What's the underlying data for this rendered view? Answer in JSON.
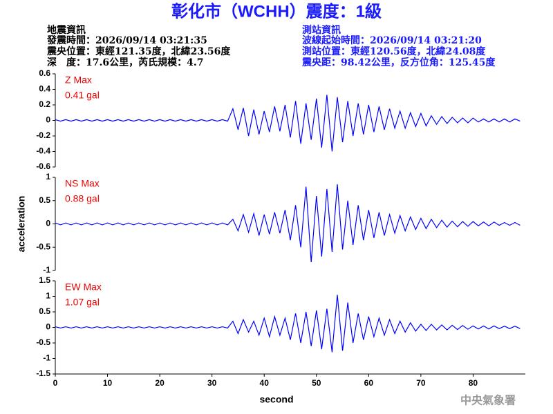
{
  "header": {
    "title": "彰化市（WCHH）震度：1級",
    "left": [
      "地震資訊",
      "發震時間：2026/09/14 03:21:35",
      "震央位置：東經121.35度，北緯23.56度",
      "深　度：17.6公里，芮氏規模：4.7"
    ],
    "right": [
      "測站資訊",
      "波線起始時間：2026/09/14 03:21:20",
      "測站位置：東經120.56度，北緯24.08度",
      "震央距：98.42公里，反方位角：125.45度"
    ]
  },
  "footer": "中央氣象署",
  "chart_data": [
    {
      "type": "line",
      "annotations": [
        "Z Max",
        "0.41 gal"
      ],
      "color": "#0000ff",
      "xlim": [
        0,
        90
      ],
      "ylim": [
        -0.6,
        0.6
      ],
      "yticks": [
        0.6,
        0.4,
        0.2,
        0,
        -0.2,
        -0.4,
        -0.6
      ],
      "x": [
        0,
        1,
        2,
        3,
        4,
        5,
        6,
        7,
        8,
        9,
        10,
        11,
        12,
        13,
        14,
        15,
        16,
        17,
        18,
        19,
        20,
        21,
        22,
        23,
        24,
        25,
        26,
        27,
        28,
        29,
        30,
        31,
        32,
        33,
        34,
        35,
        36,
        37,
        38,
        39,
        40,
        41,
        42,
        43,
        44,
        45,
        46,
        47,
        48,
        49,
        50,
        51,
        52,
        53,
        54,
        55,
        56,
        57,
        58,
        59,
        60,
        61,
        62,
        63,
        64,
        65,
        66,
        67,
        68,
        69,
        70,
        71,
        72,
        73,
        74,
        75,
        76,
        77,
        78,
        79,
        80,
        81,
        82,
        83,
        84,
        85,
        86,
        87,
        88,
        89
      ],
      "values": [
        0.01,
        -0.01,
        0.01,
        -0.01,
        0.01,
        -0.01,
        0.01,
        -0.01,
        0.01,
        -0.01,
        0.01,
        -0.01,
        0.01,
        -0.01,
        0.01,
        -0.01,
        0.01,
        -0.01,
        0.01,
        -0.01,
        0.01,
        -0.01,
        0.01,
        -0.01,
        0.01,
        -0.01,
        0.01,
        -0.01,
        0.01,
        -0.01,
        0.01,
        -0.01,
        0.01,
        -0.01,
        0.15,
        -0.12,
        0.16,
        -0.2,
        0.14,
        -0.18,
        0.12,
        -0.15,
        0.18,
        -0.14,
        0.2,
        -0.22,
        0.25,
        -0.3,
        0.22,
        -0.25,
        0.28,
        -0.35,
        0.33,
        -0.4,
        0.3,
        -0.28,
        0.25,
        -0.2,
        0.22,
        -0.18,
        0.2,
        -0.15,
        0.18,
        -0.12,
        0.15,
        -0.1,
        0.12,
        -0.1,
        0.1,
        -0.08,
        0.09,
        -0.07,
        0.06,
        -0.05,
        0.05,
        -0.04,
        0.04,
        -0.03,
        0.03,
        -0.03,
        0.03,
        -0.02,
        0.02,
        -0.02,
        0.02,
        -0.02,
        0.02,
        -0.02,
        0.02,
        -0.01
      ]
    },
    {
      "type": "line",
      "annotations": [
        "NS Max",
        "0.88 gal"
      ],
      "ylabel": "acceleration",
      "color": "#0000ff",
      "xlim": [
        0,
        90
      ],
      "ylim": [
        -1,
        1
      ],
      "yticks": [
        1,
        0.5,
        0,
        -0.5,
        -1
      ],
      "x": [
        0,
        1,
        2,
        3,
        4,
        5,
        6,
        7,
        8,
        9,
        10,
        11,
        12,
        13,
        14,
        15,
        16,
        17,
        18,
        19,
        20,
        21,
        22,
        23,
        24,
        25,
        26,
        27,
        28,
        29,
        30,
        31,
        32,
        33,
        34,
        35,
        36,
        37,
        38,
        39,
        40,
        41,
        42,
        43,
        44,
        45,
        46,
        47,
        48,
        49,
        50,
        51,
        52,
        53,
        54,
        55,
        56,
        57,
        58,
        59,
        60,
        61,
        62,
        63,
        64,
        65,
        66,
        67,
        68,
        69,
        70,
        71,
        72,
        73,
        74,
        75,
        76,
        77,
        78,
        79,
        80,
        81,
        82,
        83,
        84,
        85,
        86,
        87,
        88,
        89
      ],
      "values": [
        0.02,
        -0.02,
        0.02,
        -0.02,
        0.02,
        -0.02,
        0.02,
        -0.02,
        0.02,
        -0.02,
        0.02,
        -0.02,
        0.02,
        -0.02,
        0.02,
        -0.02,
        0.02,
        -0.02,
        0.02,
        -0.02,
        0.02,
        -0.02,
        0.02,
        -0.02,
        0.02,
        -0.02,
        0.02,
        -0.02,
        0.02,
        -0.02,
        0.02,
        -0.02,
        0.02,
        -0.02,
        0.1,
        -0.15,
        0.2,
        -0.18,
        0.22,
        -0.25,
        0.2,
        -0.22,
        0.25,
        -0.2,
        0.3,
        -0.35,
        0.4,
        -0.5,
        0.8,
        -0.82,
        0.6,
        -0.7,
        0.75,
        -0.6,
        0.85,
        -0.55,
        0.5,
        -0.45,
        0.4,
        -0.35,
        0.3,
        -0.3,
        0.25,
        -0.25,
        0.2,
        -0.2,
        0.18,
        -0.15,
        0.15,
        -0.12,
        0.12,
        -0.1,
        0.1,
        -0.08,
        0.08,
        -0.07,
        0.06,
        -0.06,
        0.05,
        -0.05,
        0.05,
        -0.04,
        0.04,
        -0.04,
        0.04,
        -0.03,
        0.03,
        -0.03,
        0.03,
        -0.03
      ]
    },
    {
      "type": "line",
      "annotations": [
        "EW Max",
        "1.07 gal"
      ],
      "xlabel": "second",
      "color": "#0000ff",
      "xlim": [
        0,
        90
      ],
      "ylim": [
        -1.5,
        1.5
      ],
      "yticks": [
        1.5,
        1,
        0.5,
        0,
        -0.5,
        -1,
        -1.5
      ],
      "xticks": [
        0,
        10,
        20,
        30,
        40,
        50,
        60,
        70,
        80
      ],
      "x": [
        0,
        1,
        2,
        3,
        4,
        5,
        6,
        7,
        8,
        9,
        10,
        11,
        12,
        13,
        14,
        15,
        16,
        17,
        18,
        19,
        20,
        21,
        22,
        23,
        24,
        25,
        26,
        27,
        28,
        29,
        30,
        31,
        32,
        33,
        34,
        35,
        36,
        37,
        38,
        39,
        40,
        41,
        42,
        43,
        44,
        45,
        46,
        47,
        48,
        49,
        50,
        51,
        52,
        53,
        54,
        55,
        56,
        57,
        58,
        59,
        60,
        61,
        62,
        63,
        64,
        65,
        66,
        67,
        68,
        69,
        70,
        71,
        72,
        73,
        74,
        75,
        76,
        77,
        78,
        79,
        80,
        81,
        82,
        83,
        84,
        85,
        86,
        87,
        88,
        89
      ],
      "values": [
        0.02,
        -0.02,
        0.02,
        -0.02,
        0.02,
        -0.02,
        0.02,
        -0.02,
        0.02,
        -0.02,
        0.02,
        -0.02,
        0.02,
        -0.02,
        0.02,
        -0.02,
        0.02,
        -0.02,
        0.02,
        -0.02,
        0.02,
        -0.02,
        0.02,
        -0.02,
        0.02,
        -0.02,
        0.02,
        -0.02,
        0.02,
        -0.02,
        0.02,
        -0.02,
        0.02,
        -0.02,
        0.2,
        -0.2,
        0.25,
        -0.15,
        0.2,
        -0.25,
        0.3,
        -0.3,
        0.35,
        -0.25,
        0.3,
        -0.4,
        0.45,
        -0.5,
        0.5,
        -0.6,
        0.55,
        -0.7,
        0.6,
        -0.8,
        1.05,
        -0.75,
        0.8,
        -0.5,
        0.45,
        -0.4,
        0.35,
        -0.3,
        0.3,
        -0.25,
        0.25,
        -0.2,
        0.2,
        -0.15,
        0.15,
        -0.12,
        0.1,
        -0.1,
        0.1,
        -0.08,
        0.08,
        -0.08,
        0.07,
        -0.07,
        0.06,
        -0.06,
        0.05,
        -0.05,
        0.05,
        -0.05,
        0.05,
        -0.04,
        0.04,
        -0.04,
        0.04,
        -0.04
      ]
    }
  ]
}
